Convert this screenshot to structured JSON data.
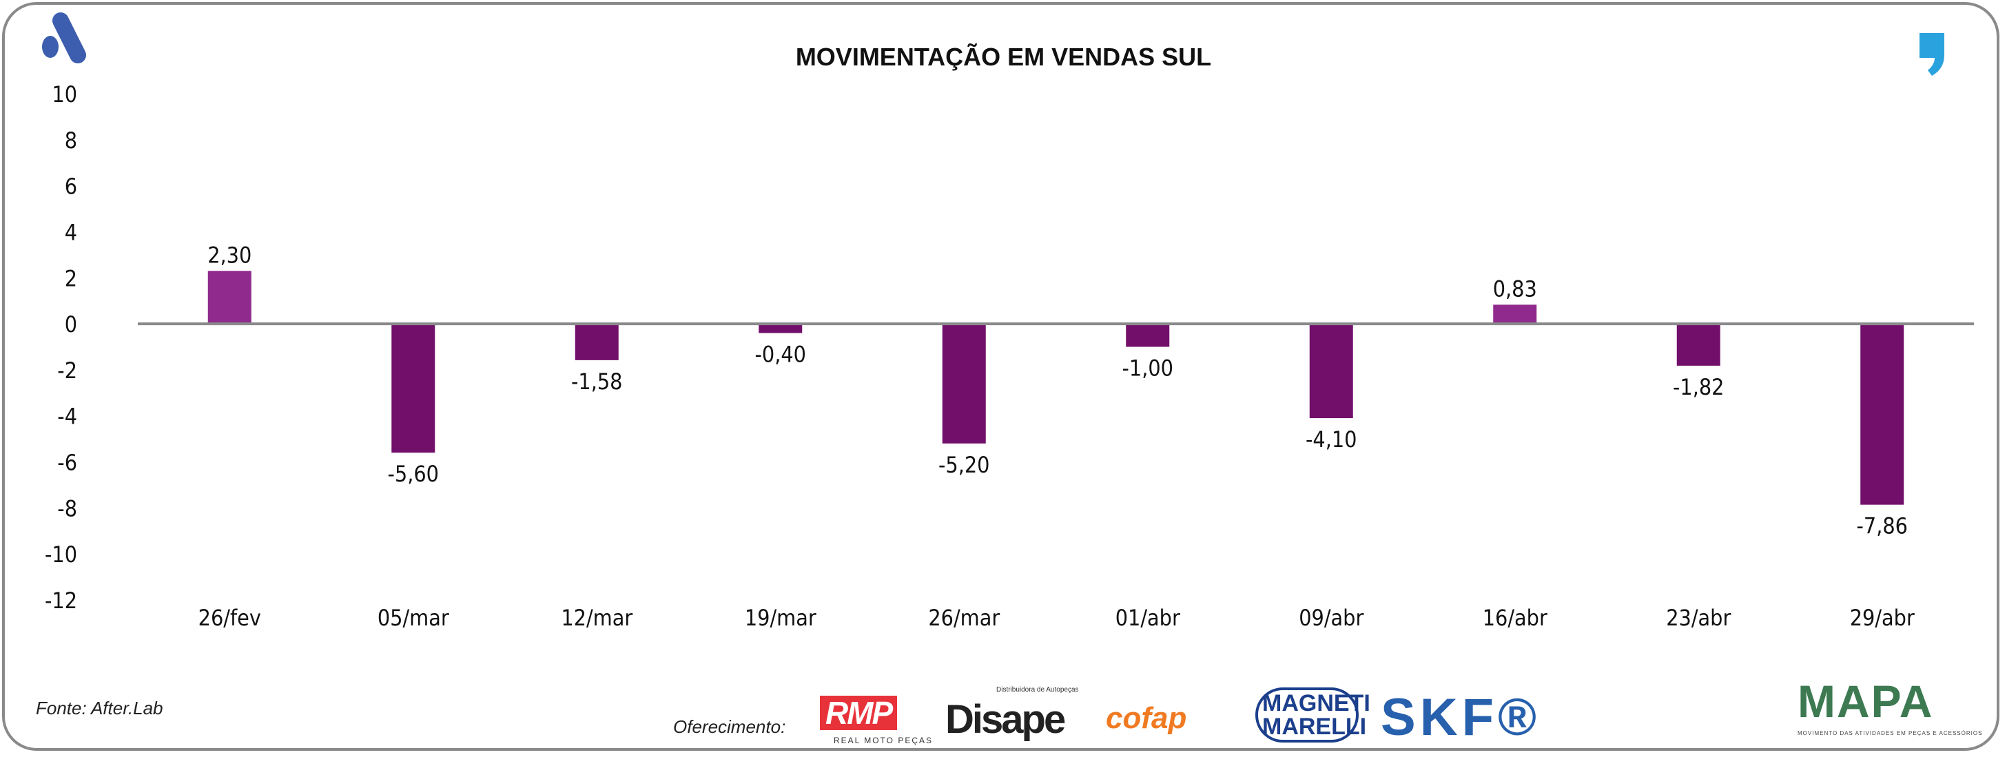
{
  "title": "MOVIMENTAÇÃO EM VENDAS SUL",
  "source": "Fonte: After.Lab",
  "sponsors": {
    "label": "Oferecimento:",
    "logos": [
      "RMP",
      "REAL MOTO PEÇAS",
      "Disape",
      "Distribuidora de Autopeças",
      "cofap",
      "MAGNETI MARELLI",
      "SKF®",
      "MAPA",
      "MOVIMENTO DAS ATIVIDADES EM PEÇAS E ACESSÓRIOS"
    ]
  },
  "colors": {
    "positive": "#912a8d",
    "negative": "#720f6b",
    "axis": "#8a8a8c",
    "brand_left": "#3d5eae",
    "brand_right": "#2aa2dd"
  },
  "chart_data": {
    "type": "bar",
    "title": "MOVIMENTAÇÃO EM VENDAS SUL",
    "categories": [
      "26/fev",
      "05/mar",
      "12/mar",
      "19/mar",
      "26/mar",
      "01/abr",
      "09/abr",
      "16/abr",
      "23/abr",
      "29/abr"
    ],
    "values": [
      2.3,
      -5.6,
      -1.58,
      -0.4,
      -5.2,
      -1.0,
      -4.1,
      0.83,
      -1.82,
      -7.86
    ],
    "data_labels": [
      "2,30",
      "-5,60",
      "-1,58",
      "-0,40",
      "-5,20",
      "-1,00",
      "-4,10",
      "0,83",
      "-1,82",
      "-7,86"
    ],
    "yticks": [
      10,
      8,
      6,
      4,
      2,
      0,
      -2,
      -4,
      -6,
      -8,
      -10,
      -12
    ],
    "ylim": [
      -12,
      10
    ],
    "xlabel": "",
    "ylabel": "",
    "grid": false,
    "legend": "none"
  }
}
